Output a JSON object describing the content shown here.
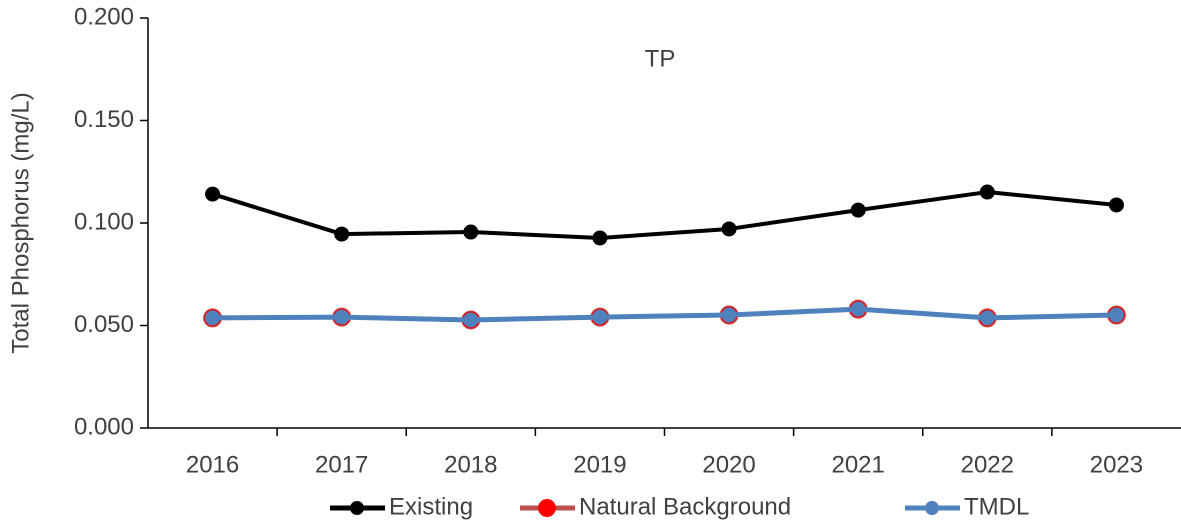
{
  "chart_data": {
    "type": "line",
    "title": "TP",
    "y_label": "Total Phosphorus (mg/L)",
    "categories": [
      "2016",
      "2017",
      "2018",
      "2019",
      "2020",
      "2021",
      "2022",
      "2023"
    ],
    "series": [
      {
        "name": "Existing",
        "color": "#000000",
        "marker_color": "#000000",
        "values": [
          0.1141,
          0.0946,
          0.0956,
          0.0927,
          0.0971,
          0.1063,
          0.1151,
          0.1088
        ]
      },
      {
        "name": "Natural Background",
        "color": "#c0504d",
        "marker_color": "#ff0000",
        "values": [
          0.0537,
          0.0541,
          0.0527,
          0.0541,
          0.0551,
          0.058,
          0.0537,
          0.0551
        ]
      },
      {
        "name": "TMDL",
        "color": "#4f81bd",
        "marker_color": "#4f81bd",
        "values": [
          0.0537,
          0.0541,
          0.0527,
          0.0541,
          0.0551,
          0.058,
          0.0537,
          0.0551
        ]
      }
    ],
    "ylim": [
      0,
      0.2
    ],
    "yticks": [
      {
        "value": 0,
        "label": "0.000"
      },
      {
        "value": 0.05,
        "label": "0.050"
      },
      {
        "value": 0.1,
        "label": "0.100"
      },
      {
        "value": 0.15,
        "label": "0.150"
      },
      {
        "value": 0.2,
        "label": "0.200"
      }
    ],
    "grid": false,
    "legend": "bottom"
  }
}
